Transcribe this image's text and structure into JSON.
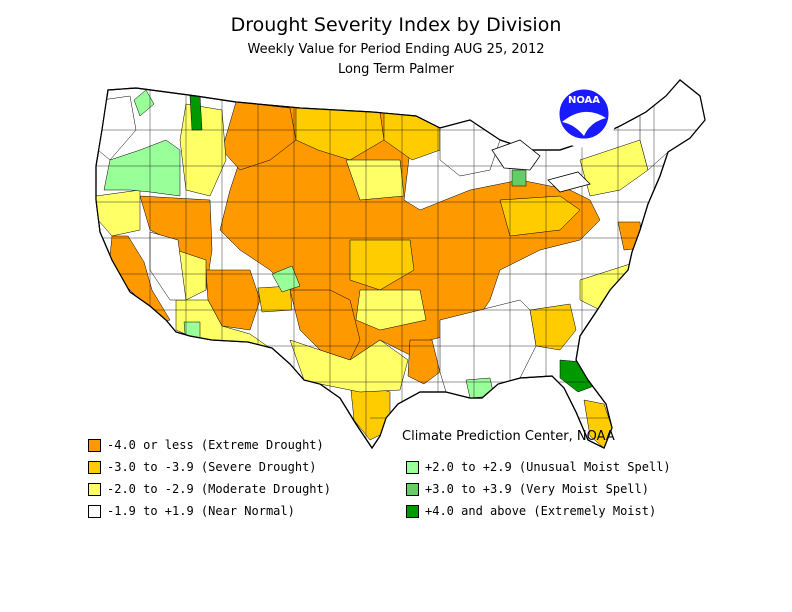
{
  "header": {
    "title": "Drought Severity Index by Division",
    "subtitle": "Weekly Value for Period Ending AUG 25, 2012",
    "index_name": "Long Term Palmer"
  },
  "credit": "Climate Prediction Center, NOAA",
  "logo": {
    "text": "NOAA"
  },
  "colors": {
    "extreme_drought": "#ff9900",
    "severe_drought": "#ffcc00",
    "moderate_drought": "#ffff66",
    "near_normal": "#ffffff",
    "unusual_moist": "#99ff99",
    "very_moist": "#66cc66",
    "extremely_moist": "#009900",
    "boundary": "#000000"
  },
  "legend": {
    "left": [
      {
        "label": "-4.0 or less (Extreme Drought)",
        "color": "#ff9900"
      },
      {
        "label": "-3.0 to -3.9 (Severe Drought)",
        "color": "#ffcc00"
      },
      {
        "label": "-2.0 to -2.9 (Moderate Drought)",
        "color": "#ffff66"
      },
      {
        "label": "-1.9 to +1.9 (Near Normal)",
        "color": "#ffffff"
      }
    ],
    "right": [
      {
        "label": "+2.0 to +2.9 (Unusual Moist Spell)",
        "color": "#99ff99"
      },
      {
        "label": "+3.0 to +3.9 (Very Moist Spell)",
        "color": "#66cc66"
      },
      {
        "label": "+4.0 and above (Extremely Moist)",
        "color": "#009900"
      }
    ]
  }
}
